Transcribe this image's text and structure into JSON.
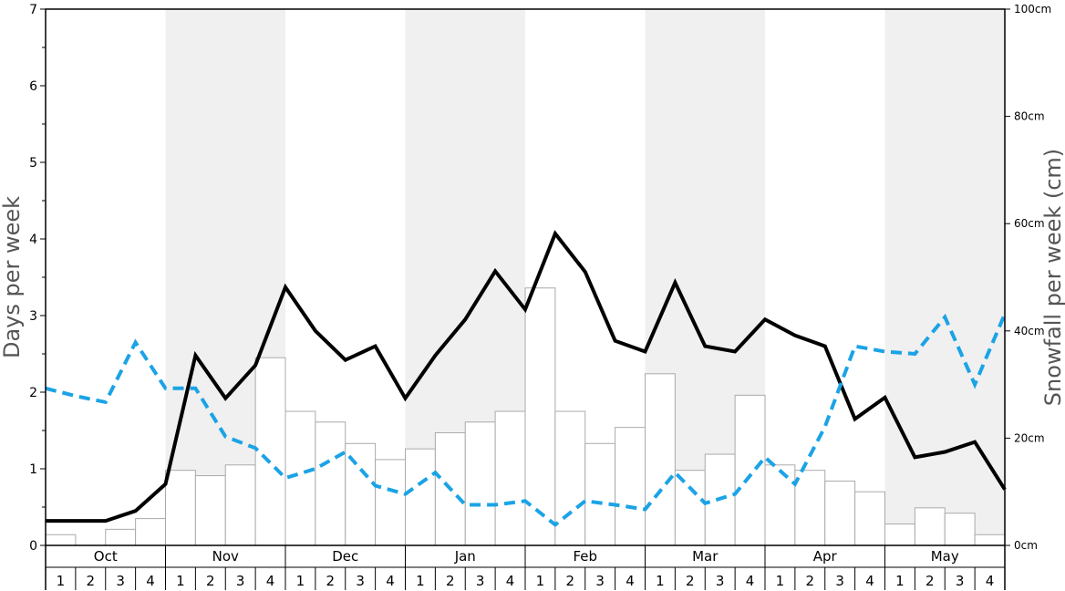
{
  "chart_data": {
    "type": "bar",
    "ylabel": "Days per week",
    "y2label": "Snowfall per week (cm)",
    "ylim": [
      0,
      7
    ],
    "y2lim": [
      0,
      100
    ],
    "y_ticks": [
      "0",
      "1",
      "2",
      "3",
      "4",
      "5",
      "6",
      "7"
    ],
    "y2_ticks": [
      "0cm",
      "20cm",
      "40cm",
      "60cm",
      "80cm",
      "100cm"
    ],
    "months": [
      "Oct",
      "Nov",
      "Dec",
      "Jan",
      "Feb",
      "Mar",
      "Apr",
      "May"
    ],
    "weeks": [
      "1",
      "2",
      "3",
      "4"
    ],
    "grid": false,
    "colors": {
      "solid_line": "#000000",
      "dashed_line": "#1ba3e6",
      "bar_fill": "#ffffff",
      "bar_stroke": "#aaaaaa",
      "band": "#f0f0f0"
    },
    "series": [
      {
        "type": "bar",
        "axis": "right",
        "values": [
          2,
          0,
          3,
          5,
          14,
          13,
          15,
          35,
          25,
          23,
          19,
          16,
          18,
          21,
          23,
          25,
          48,
          25,
          19,
          22,
          32,
          14,
          17,
          28,
          15,
          14,
          12,
          10,
          4,
          7,
          6,
          2
        ]
      },
      {
        "type": "line",
        "axis": "left",
        "style": "solid",
        "values": [
          0.32,
          0.32,
          0.32,
          0.45,
          0.8,
          2.48,
          1.92,
          2.35,
          3.37,
          2.8,
          2.42,
          2.6,
          1.92,
          2.48,
          2.95,
          3.58,
          3.08,
          4.07,
          3.57,
          2.67,
          2.53,
          3.43,
          2.6,
          2.53,
          2.95,
          2.74,
          2.6,
          1.65,
          1.93,
          1.15,
          1.22,
          1.35,
          0.73
        ]
      },
      {
        "type": "line",
        "axis": "left",
        "style": "dashed",
        "values": [
          2.05,
          1.95,
          1.87,
          2.65,
          2.05,
          2.05,
          1.42,
          1.27,
          0.88,
          1.0,
          1.22,
          0.78,
          0.67,
          0.95,
          0.53,
          0.53,
          0.58,
          0.27,
          0.58,
          0.53,
          0.47,
          0.95,
          0.55,
          0.67,
          1.15,
          0.8,
          1.55,
          2.6,
          2.53,
          2.5,
          2.98,
          2.1,
          3.02
        ]
      }
    ]
  }
}
